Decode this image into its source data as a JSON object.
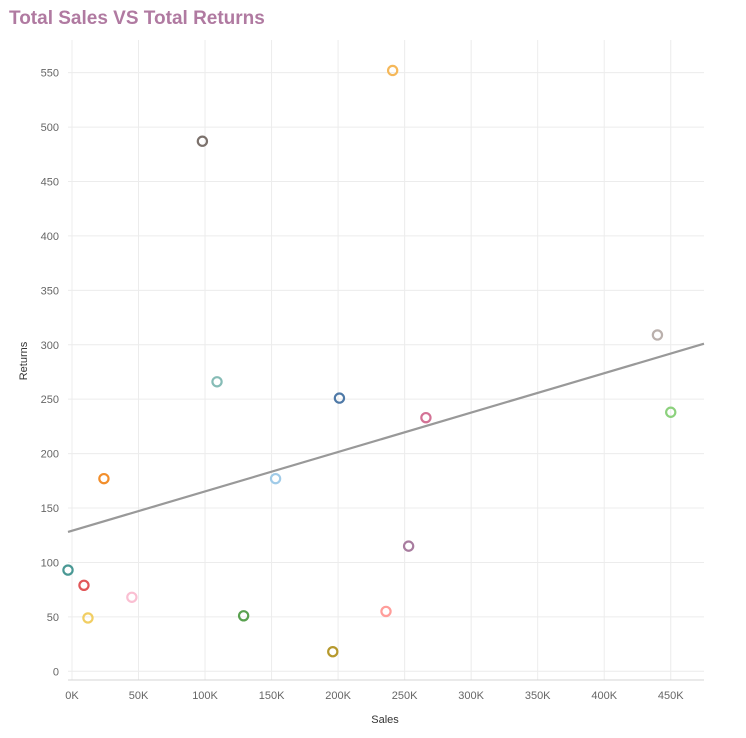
{
  "chart_data": {
    "type": "scatter",
    "title": "Total Sales VS Total Returns",
    "xlabel": "Sales",
    "ylabel": "Returns",
    "xlim": [
      -3000,
      475000
    ],
    "ylim": [
      -8,
      580
    ],
    "x_ticks": [
      {
        "value": 0,
        "label": "0K"
      },
      {
        "value": 50000,
        "label": "50K"
      },
      {
        "value": 100000,
        "label": "100K"
      },
      {
        "value": 150000,
        "label": "150K"
      },
      {
        "value": 200000,
        "label": "200K"
      },
      {
        "value": 250000,
        "label": "250K"
      },
      {
        "value": 300000,
        "label": "300K"
      },
      {
        "value": 350000,
        "label": "350K"
      },
      {
        "value": 400000,
        "label": "400K"
      },
      {
        "value": 450000,
        "label": "450K"
      }
    ],
    "y_ticks": [
      {
        "value": 0,
        "label": "0"
      },
      {
        "value": 50,
        "label": "50"
      },
      {
        "value": 100,
        "label": "100"
      },
      {
        "value": 150,
        "label": "150"
      },
      {
        "value": 200,
        "label": "200"
      },
      {
        "value": 250,
        "label": "250"
      },
      {
        "value": 300,
        "label": "300"
      },
      {
        "value": 350,
        "label": "350"
      },
      {
        "value": 400,
        "label": "400"
      },
      {
        "value": 450,
        "label": "450"
      },
      {
        "value": 500,
        "label": "500"
      },
      {
        "value": 550,
        "label": "550"
      }
    ],
    "grid": true,
    "legend": "none",
    "points": [
      {
        "x": 241000,
        "y": 552,
        "color": "#f5b85a"
      },
      {
        "x": 98000,
        "y": 487,
        "color": "#7b716c"
      },
      {
        "x": 440000,
        "y": 309,
        "color": "#bab0ac"
      },
      {
        "x": 109000,
        "y": 266,
        "color": "#86bcb6"
      },
      {
        "x": 201000,
        "y": 251,
        "color": "#4e79a7"
      },
      {
        "x": 450000,
        "y": 238,
        "color": "#8cd17d"
      },
      {
        "x": 266000,
        "y": 233,
        "color": "#d37295"
      },
      {
        "x": 153000,
        "y": 177,
        "color": "#a0cbe8"
      },
      {
        "x": 24000,
        "y": 177,
        "color": "#f28e2b"
      },
      {
        "x": 253000,
        "y": 115,
        "color": "#a87c9f"
      },
      {
        "x": -3000,
        "y": 93,
        "color": "#499894"
      },
      {
        "x": 9000,
        "y": 79,
        "color": "#e15759"
      },
      {
        "x": 45000,
        "y": 68,
        "color": "#fabfd2"
      },
      {
        "x": 12000,
        "y": 49,
        "color": "#f1ce63"
      },
      {
        "x": 129000,
        "y": 51,
        "color": "#59a14f"
      },
      {
        "x": 236000,
        "y": 55,
        "color": "#ff9d9a"
      },
      {
        "x": 196000,
        "y": 18,
        "color": "#b6992d"
      }
    ],
    "trend_line": {
      "color": "#999999",
      "start": {
        "x": -3000,
        "y": 128
      },
      "end": {
        "x": 475000,
        "y": 301
      }
    }
  }
}
